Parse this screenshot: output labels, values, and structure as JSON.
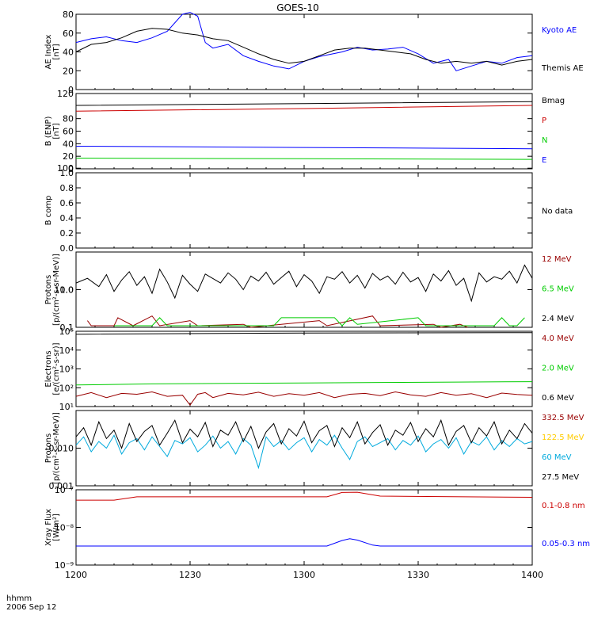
{
  "title": "GOES-10",
  "footer": {
    "xunit": "hhmm",
    "date": "2006 Sep 12"
  },
  "x_ticks": [
    "1200",
    "1230",
    "1300",
    "1330",
    "1400"
  ],
  "chart_data": [
    {
      "type": "line",
      "ylabel": [
        "AE Index",
        "[nT]"
      ],
      "yscale": "linear",
      "ylim": [
        0,
        80
      ],
      "yticks": [
        "0",
        "20",
        "40",
        "60",
        "80"
      ],
      "xlim": [
        0,
        120
      ],
      "x_unit": "minutes after 1200 UT",
      "series": [
        {
          "name": "Kyoto AE",
          "color": "#0000ff",
          "x": [
            0,
            4,
            8,
            12,
            16,
            20,
            24,
            28,
            30,
            32,
            34,
            36,
            40,
            44,
            48,
            52,
            56,
            60,
            64,
            70,
            74,
            78,
            82,
            86,
            90,
            94,
            98,
            100,
            104,
            108,
            112,
            116,
            120
          ],
          "y": [
            50,
            54,
            56,
            52,
            50,
            55,
            62,
            80,
            82,
            78,
            50,
            44,
            48,
            36,
            30,
            25,
            22,
            30,
            35,
            40,
            45,
            42,
            43,
            45,
            38,
            28,
            32,
            20,
            25,
            30,
            28,
            34,
            36
          ]
        },
        {
          "name": "Themis AE",
          "color": "#000000",
          "x": [
            0,
            4,
            8,
            12,
            16,
            20,
            24,
            28,
            32,
            36,
            40,
            44,
            48,
            52,
            56,
            60,
            64,
            68,
            72,
            76,
            80,
            84,
            88,
            92,
            96,
            100,
            104,
            108,
            112,
            116,
            120
          ],
          "y": [
            40,
            48,
            50,
            55,
            62,
            65,
            64,
            60,
            58,
            54,
            52,
            45,
            38,
            32,
            28,
            30,
            36,
            42,
            44,
            44,
            42,
            40,
            38,
            32,
            28,
            30,
            28,
            30,
            26,
            30,
            32
          ]
        }
      ]
    },
    {
      "type": "line",
      "ylabel": [
        "B (ENP)",
        "[nT]"
      ],
      "yscale": "linear",
      "ylim": [
        0,
        120
      ],
      "yticks": [
        "0",
        "20",
        "40",
        "60",
        "80",
        "100",
        "120"
      ],
      "xlim": [
        0,
        120
      ],
      "series": [
        {
          "name": "Bmag",
          "color": "#000000",
          "x": [
            0,
            60,
            120
          ],
          "y": [
            101,
            104,
            107
          ]
        },
        {
          "name": "P",
          "color": "#cc0000",
          "x": [
            0,
            60,
            120
          ],
          "y": [
            92,
            96,
            101
          ]
        },
        {
          "name": "N",
          "color": "#00cc00",
          "x": [
            0,
            60,
            120
          ],
          "y": [
            17,
            16,
            15
          ]
        },
        {
          "name": "E",
          "color": "#0000ff",
          "x": [
            0,
            60,
            120
          ],
          "y": [
            36,
            34,
            32
          ]
        }
      ]
    },
    {
      "type": "line",
      "ylabel": [
        "B comp"
      ],
      "yscale": "linear",
      "ylim": [
        0,
        1
      ],
      "yticks": [
        "0.0",
        "0.2",
        "0.4",
        "0.6",
        "0.8",
        "1.0"
      ],
      "xlim": [
        0,
        120
      ],
      "series": [],
      "note": "No data"
    },
    {
      "type": "line",
      "ylabel": [
        "Protons",
        "[p/(cm²-s-sr-MeV)]"
      ],
      "yscale": "log",
      "ylim": [
        0.1,
        10
      ],
      "yticks": [
        "0.1",
        "1.0",
        "10.0"
      ],
      "xlim": [
        0,
        120
      ],
      "series": [
        {
          "name": "12 MeV",
          "color": "#990000",
          "x": [
            3,
            4,
            10,
            11,
            15,
            20,
            22,
            30,
            32,
            44,
            46,
            64,
            66,
            78,
            80,
            94,
            96,
            101,
            103
          ],
          "y": [
            0.15,
            0.11,
            0.11,
            0.18,
            0.11,
            0.2,
            0.11,
            0.15,
            0.11,
            0.12,
            0.1,
            0.15,
            0.11,
            0.2,
            0.11,
            0.12,
            0.1,
            0.12,
            0.1
          ]
        },
        {
          "name": "6.5 MeV",
          "color": "#00cc00",
          "x": [
            10,
            12,
            18,
            20,
            22,
            24,
            50,
            52,
            54,
            68,
            70,
            72,
            74,
            90,
            92,
            94,
            98,
            100,
            102,
            110,
            112,
            114,
            116,
            118
          ],
          "y": [
            0.11,
            0.11,
            0.11,
            0.11,
            0.18,
            0.11,
            0.11,
            0.11,
            0.18,
            0.18,
            0.11,
            0.18,
            0.12,
            0.18,
            0.11,
            0.11,
            0.11,
            0.11,
            0.11,
            0.11,
            0.18,
            0.11,
            0.11,
            0.18
          ]
        },
        {
          "name": "2.4 MeV",
          "color": "#000000",
          "x": [
            0,
            3,
            6,
            8,
            10,
            12,
            14,
            16,
            18,
            20,
            22,
            24,
            26,
            28,
            30,
            32,
            34,
            38,
            40,
            42,
            44,
            46,
            48,
            50,
            52,
            54,
            56,
            58,
            60,
            62,
            64,
            66,
            68,
            70,
            72,
            74,
            76,
            78,
            80,
            82,
            84,
            86,
            88,
            90,
            92,
            94,
            96,
            98,
            100,
            102,
            104,
            106,
            108,
            110,
            112,
            114,
            116,
            118,
            120
          ],
          "y": [
            1.5,
            2.0,
            1.2,
            2.5,
            0.9,
            1.8,
            3.0,
            1.3,
            2.2,
            0.8,
            3.5,
            1.6,
            0.6,
            2.4,
            1.4,
            0.9,
            2.6,
            1.5,
            2.8,
            1.9,
            1.0,
            2.3,
            1.7,
            2.9,
            1.4,
            2.1,
            3.1,
            1.2,
            2.5,
            1.7,
            0.8,
            2.2,
            1.9,
            3.0,
            1.5,
            2.4,
            1.1,
            2.7,
            1.8,
            2.3,
            1.4,
            2.9,
            1.6,
            2.1,
            0.9,
            2.6,
            1.7,
            3.2,
            1.3,
            2.0,
            0.5,
            2.8,
            1.6,
            2.2,
            1.9,
            3.1,
            1.5,
            4.5,
            2.0
          ]
        }
      ]
    },
    {
      "type": "line",
      "ylabel": [
        "Electrons",
        "[e/(cm²-s-sr)]"
      ],
      "yscale": "log",
      "ylim": [
        10,
        100000
      ],
      "yticks": [
        "10¹",
        "10²",
        "10³",
        "10⁴",
        "10⁵"
      ],
      "xlim": [
        0,
        120
      ],
      "series": [
        {
          "name": "4.0 MeV",
          "color": "#990000",
          "x": [
            0,
            4,
            8,
            12,
            16,
            20,
            24,
            28,
            30,
            32,
            34,
            36,
            40,
            44,
            48,
            52,
            56,
            60,
            64,
            68,
            72,
            76,
            80,
            84,
            88,
            92,
            96,
            100,
            104,
            108,
            112,
            116,
            120
          ],
          "y": [
            35,
            55,
            30,
            50,
            45,
            60,
            35,
            40,
            12,
            45,
            55,
            30,
            50,
            42,
            58,
            35,
            48,
            40,
            55,
            30,
            45,
            50,
            38,
            60,
            42,
            35,
            55,
            40,
            48,
            30,
            52,
            44,
            40
          ]
        },
        {
          "name": "2.0 MeV",
          "color": "#00cc00",
          "x": [
            0,
            20,
            40,
            60,
            80,
            100,
            120
          ],
          "y": [
            140,
            160,
            170,
            180,
            190,
            200,
            210
          ]
        },
        {
          "name": "0.6 MeV",
          "color": "#000000",
          "x": [
            0,
            60,
            120
          ],
          "y": [
            70000,
            80000,
            85000
          ]
        }
      ]
    },
    {
      "type": "line",
      "ylabel": [
        "Protons",
        "[p/(cm²-s-sr-MeV)]"
      ],
      "yscale": "log",
      "ylim": [
        0.001,
        0.1
      ],
      "yticks": [
        "0.001",
        "0.010"
      ],
      "xlim": [
        0,
        120
      ],
      "series": [
        {
          "name": "332.5 MeV",
          "color": "#990000",
          "x": [],
          "y": []
        },
        {
          "name": "122.5 MeV",
          "color": "#ffcc00",
          "x": [],
          "y": []
        },
        {
          "name": "60 MeV",
          "color": "#00aadd",
          "x": [
            0,
            2,
            4,
            6,
            8,
            10,
            12,
            14,
            16,
            18,
            20,
            22,
            24,
            26,
            28,
            30,
            32,
            34,
            36,
            38,
            40,
            42,
            44,
            46,
            48,
            50,
            52,
            54,
            56,
            58,
            60,
            62,
            64,
            66,
            68,
            70,
            72,
            74,
            76,
            78,
            80,
            82,
            84,
            86,
            88,
            90,
            92,
            94,
            96,
            98,
            100,
            102,
            104,
            106,
            108,
            110,
            112,
            114,
            116,
            118,
            120
          ],
          "y": [
            0.012,
            0.02,
            0.008,
            0.015,
            0.01,
            0.022,
            0.007,
            0.014,
            0.018,
            0.009,
            0.02,
            0.011,
            0.006,
            0.016,
            0.013,
            0.019,
            0.008,
            0.012,
            0.021,
            0.01,
            0.015,
            0.007,
            0.018,
            0.012,
            0.003,
            0.02,
            0.011,
            0.016,
            0.009,
            0.014,
            0.019,
            0.008,
            0.017,
            0.012,
            0.022,
            0.01,
            0.005,
            0.015,
            0.02,
            0.011,
            0.014,
            0.018,
            0.009,
            0.016,
            0.012,
            0.021,
            0.008,
            0.013,
            0.017,
            0.01,
            0.019,
            0.007,
            0.015,
            0.012,
            0.02,
            0.009,
            0.016,
            0.011,
            0.018,
            0.013,
            0.015
          ]
        },
        {
          "name": "27.5 MeV",
          "color": "#000000",
          "x": [
            0,
            2,
            4,
            6,
            8,
            10,
            12,
            14,
            16,
            18,
            20,
            22,
            24,
            26,
            28,
            30,
            32,
            34,
            36,
            38,
            40,
            42,
            44,
            46,
            48,
            50,
            52,
            54,
            56,
            58,
            60,
            62,
            64,
            66,
            68,
            70,
            72,
            74,
            76,
            78,
            80,
            82,
            84,
            86,
            88,
            90,
            92,
            94,
            96,
            98,
            100,
            102,
            104,
            106,
            108,
            110,
            112,
            114,
            116,
            118,
            120
          ],
          "y": [
            0.02,
            0.035,
            0.012,
            0.05,
            0.018,
            0.03,
            0.01,
            0.045,
            0.015,
            0.028,
            0.04,
            0.012,
            0.025,
            0.055,
            0.014,
            0.032,
            0.02,
            0.048,
            0.011,
            0.03,
            0.022,
            0.05,
            0.015,
            0.038,
            0.01,
            0.027,
            0.045,
            0.013,
            0.033,
            0.021,
            0.052,
            0.014,
            0.029,
            0.04,
            0.011,
            0.035,
            0.019,
            0.05,
            0.013,
            0.026,
            0.042,
            0.012,
            0.03,
            0.022,
            0.048,
            0.015,
            0.033,
            0.02,
            0.055,
            0.012,
            0.028,
            0.04,
            0.014,
            0.035,
            0.021,
            0.05,
            0.013,
            0.03,
            0.018,
            0.045,
            0.025
          ]
        }
      ]
    },
    {
      "type": "line",
      "ylabel": [
        "Xray Flux",
        "[W/m²]"
      ],
      "yscale": "log",
      "ylim": [
        1e-09,
        1e-07
      ],
      "yticks": [
        "10⁻⁹",
        "10⁻⁸",
        "10⁻⁷"
      ],
      "xlim": [
        0,
        120
      ],
      "series": [
        {
          "name": "0.1-0.8 nm",
          "color": "#cc0000",
          "x": [
            0,
            10,
            16,
            50,
            66,
            70,
            74,
            80,
            120
          ],
          "y": [
            5.3e-08,
            5.3e-08,
            6.5e-08,
            6.5e-08,
            6.5e-08,
            8.5e-08,
            8.6e-08,
            6.8e-08,
            6.3e-08
          ]
        },
        {
          "name": "0.05-0.3 nm",
          "color": "#0000ff",
          "x": [
            0,
            66,
            70,
            72,
            74,
            78,
            80,
            120
          ],
          "y": [
            3.2e-09,
            3.2e-09,
            4.5e-09,
            5e-09,
            4.6e-09,
            3.4e-09,
            3.2e-09,
            3.2e-09
          ]
        }
      ]
    }
  ]
}
